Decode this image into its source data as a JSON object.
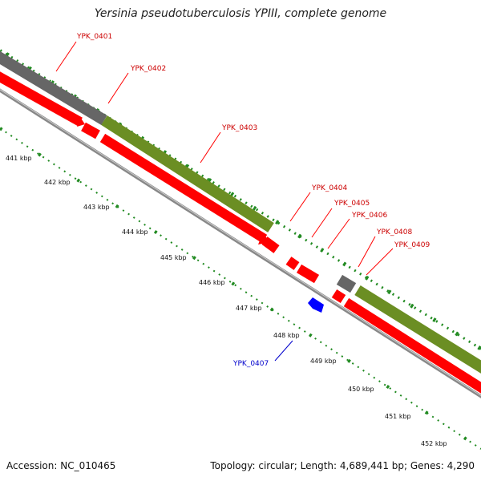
{
  "map": {
    "title": "Yersinia pseudotuberculosis YPIII, complete genome",
    "accession": "Accession: NC_010465",
    "stats": "Topology: circular; Length: 4,689,441 bp; Genes: 4,290",
    "colors": {
      "forward_cds": "#ff0000",
      "reverse_cds": "#0000ff",
      "other_feature": "#666666",
      "cog_band": "#6b8e23",
      "ticks": "#228b22",
      "backbone": "#999999"
    }
  },
  "scale_ticks": [
    "441 kbp",
    "442 kbp",
    "443 kbp",
    "444 kbp",
    "445 kbp",
    "446 kbp",
    "447 kbp",
    "448 kbp",
    "449 kbp",
    "450 kbp",
    "451 kbp",
    "452 kbp"
  ],
  "genes": [
    {
      "label": "YPK_0401",
      "strand": "forward"
    },
    {
      "label": "YPK_0402",
      "strand": "forward"
    },
    {
      "label": "YPK_0403",
      "strand": "forward"
    },
    {
      "label": "YPK_0404",
      "strand": "forward"
    },
    {
      "label": "YPK_0405",
      "strand": "forward"
    },
    {
      "label": "YPK_0406",
      "strand": "forward"
    },
    {
      "label": "YPK_0407",
      "strand": "reverse"
    },
    {
      "label": "YPK_0408",
      "strand": "forward"
    },
    {
      "label": "YPK_0409",
      "strand": "forward"
    }
  ]
}
